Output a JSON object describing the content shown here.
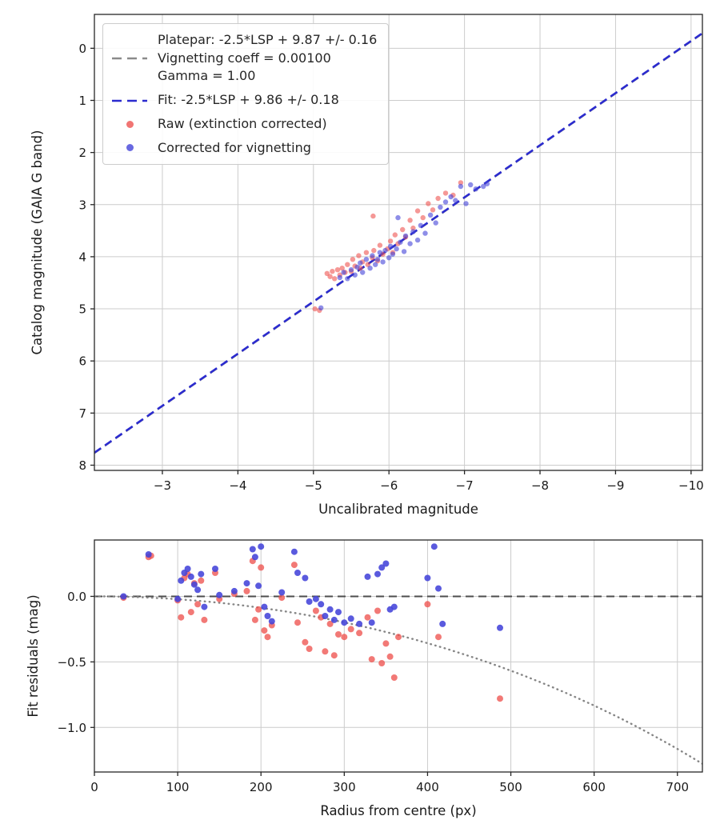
{
  "figure": {
    "background": "#ffffff",
    "colors": {
      "raw": "#ee5350",
      "corrected": "#4343d9",
      "fit_line": "#2b2bcf",
      "platepar_line": "#8a8a8a",
      "zero_line": "#4d4d4d",
      "vignetting_curve": "#858585",
      "grid": "#cccccc",
      "axis": "#262626",
      "text": "#1a1a1a"
    }
  },
  "legend": {
    "entries": [
      {
        "marker": "dash",
        "color_key": "platepar_line",
        "lines": [
          "Platepar: -2.5*LSP + 9.87 +/- 0.16",
          "Vignetting coeff = 0.00100",
          "Gamma = 1.00"
        ]
      },
      {
        "marker": "dash",
        "color_key": "fit_line",
        "lines": [
          "Fit: -2.5*LSP + 9.86 +/- 0.18"
        ]
      },
      {
        "marker": "dot",
        "color_key": "raw",
        "lines": [
          "Raw (extinction corrected)"
        ]
      },
      {
        "marker": "dot",
        "color_key": "corrected",
        "lines": [
          "Corrected for vignetting"
        ]
      }
    ]
  },
  "chart_data": [
    {
      "id": "magnitude-fit",
      "type": "scatter",
      "title": "",
      "xlabel": "Uncalibrated magnitude",
      "ylabel": "Catalog magnitude (GAIA G band)",
      "x_range": [
        -2.1,
        -10.15
      ],
      "y_range": [
        8.1,
        -0.65
      ],
      "x_inverted": true,
      "y_inverted": true,
      "grid": true,
      "legend_position": "upper left",
      "x_ticks": {
        "values": [
          -3,
          -4,
          -5,
          -6,
          -7,
          -8,
          -9,
          -10
        ],
        "labels": [
          "−3",
          "−4",
          "−5",
          "−6",
          "−7",
          "−8",
          "−9",
          "−10"
        ]
      },
      "y_ticks": {
        "values": [
          0,
          1,
          2,
          3,
          4,
          5,
          6,
          7,
          8
        ],
        "labels": [
          "0",
          "1",
          "2",
          "3",
          "4",
          "5",
          "6",
          "7",
          "8"
        ]
      },
      "lines": [
        {
          "name": "platepar-line",
          "label": "Platepar: -2.5*LSP + 9.87 +/- 0.16",
          "slope": 1,
          "intercept": 9.87,
          "dash": "dashed",
          "color_key": "platepar_line",
          "width": 2
        },
        {
          "name": "fit-line",
          "label": "Fit: -2.5*LSP + 9.86 +/- 0.18",
          "slope": 1,
          "intercept": 9.86,
          "dash": "dashed",
          "color_key": "fit_line",
          "width": 2.6
        }
      ],
      "series": [
        {
          "id": "raw",
          "name": "Raw (extinction corrected)",
          "color_key": "raw",
          "marker_radius": 3.2,
          "opacity": 0.6,
          "points": [
            [
              -5.02,
              5.0
            ],
            [
              -5.08,
              5.03
            ],
            [
              -5.18,
              4.32
            ],
            [
              -5.22,
              4.38
            ],
            [
              -5.25,
              4.28
            ],
            [
              -5.28,
              4.42
            ],
            [
              -5.32,
              4.25
            ],
            [
              -5.35,
              4.35
            ],
            [
              -5.38,
              4.22
            ],
            [
              -5.42,
              4.3
            ],
            [
              -5.45,
              4.15
            ],
            [
              -5.5,
              4.28
            ],
            [
              -5.52,
              4.05
            ],
            [
              -5.55,
              4.18
            ],
            [
              -5.6,
              3.98
            ],
            [
              -5.62,
              4.22
            ],
            [
              -5.65,
              4.1
            ],
            [
              -5.7,
              3.92
            ],
            [
              -5.72,
              4.15
            ],
            [
              -5.78,
              4.02
            ],
            [
              -5.79,
              3.22
            ],
            [
              -5.8,
              3.88
            ],
            [
              -5.85,
              4.08
            ],
            [
              -5.88,
              3.78
            ],
            [
              -5.92,
              3.95
            ],
            [
              -5.98,
              3.85
            ],
            [
              -6.02,
              3.7
            ],
            [
              -6.05,
              3.92
            ],
            [
              -6.08,
              3.58
            ],
            [
              -6.12,
              3.75
            ],
            [
              -6.18,
              3.48
            ],
            [
              -6.22,
              3.62
            ],
            [
              -6.28,
              3.3
            ],
            [
              -6.32,
              3.45
            ],
            [
              -6.38,
              3.12
            ],
            [
              -6.45,
              3.25
            ],
            [
              -6.52,
              2.98
            ],
            [
              -6.58,
              3.1
            ],
            [
              -6.65,
              2.88
            ],
            [
              -6.75,
              2.78
            ],
            [
              -6.85,
              2.82
            ],
            [
              -6.95,
              2.58
            ]
          ]
        },
        {
          "id": "corrected",
          "name": "Corrected for vignetting",
          "color_key": "corrected",
          "marker_radius": 3.2,
          "opacity": 0.6,
          "points": [
            [
              -5.1,
              4.98
            ],
            [
              -5.35,
              4.4
            ],
            [
              -5.4,
              4.3
            ],
            [
              -5.45,
              4.42
            ],
            [
              -5.5,
              4.25
            ],
            [
              -5.55,
              4.35
            ],
            [
              -5.58,
              4.2
            ],
            [
              -5.62,
              4.12
            ],
            [
              -5.65,
              4.3
            ],
            [
              -5.7,
              4.05
            ],
            [
              -5.75,
              4.22
            ],
            [
              -5.78,
              3.98
            ],
            [
              -5.82,
              4.15
            ],
            [
              -5.85,
              4.05
            ],
            [
              -5.88,
              3.92
            ],
            [
              -5.92,
              4.1
            ],
            [
              -5.95,
              3.88
            ],
            [
              -6.0,
              4.02
            ],
            [
              -6.02,
              3.8
            ],
            [
              -6.05,
              3.95
            ],
            [
              -6.1,
              3.85
            ],
            [
              -6.12,
              3.25
            ],
            [
              -6.15,
              3.72
            ],
            [
              -6.2,
              3.9
            ],
            [
              -6.22,
              3.6
            ],
            [
              -6.28,
              3.75
            ],
            [
              -6.32,
              3.52
            ],
            [
              -6.38,
              3.68
            ],
            [
              -6.42,
              3.4
            ],
            [
              -6.48,
              3.55
            ],
            [
              -6.55,
              3.2
            ],
            [
              -6.62,
              3.35
            ],
            [
              -6.68,
              3.05
            ],
            [
              -6.75,
              2.95
            ],
            [
              -6.82,
              2.85
            ],
            [
              -6.88,
              2.92
            ],
            [
              -6.95,
              2.65
            ],
            [
              -7.02,
              2.98
            ],
            [
              -7.08,
              2.62
            ],
            [
              -7.15,
              2.7
            ],
            [
              -7.25,
              2.65
            ],
            [
              -7.3,
              2.6
            ]
          ]
        }
      ]
    },
    {
      "id": "residuals",
      "type": "scatter",
      "title": "",
      "xlabel": "Radius from centre (px)",
      "ylabel": "Fit residuals (mag)",
      "x_range": [
        0,
        730
      ],
      "y_range": [
        -1.34,
        0.43
      ],
      "grid": true,
      "x_ticks": {
        "values": [
          0,
          100,
          200,
          300,
          400,
          500,
          600,
          700
        ],
        "labels": [
          "0",
          "100",
          "200",
          "300",
          "400",
          "500",
          "600",
          "700"
        ]
      },
      "y_ticks": {
        "values": [
          0,
          -0.5,
          -1
        ],
        "labels": [
          "0.0",
          "−0.5",
          "−1.0"
        ]
      },
      "h_lines": [
        {
          "name": "zero-residual-line",
          "y": 0,
          "dash": "dashed",
          "color_key": "zero_line",
          "width": 2
        }
      ],
      "model_curve": {
        "name": "vignetting-model-curve",
        "kind": "vignetting",
        "coeff": 0.001,
        "dash": "dotted",
        "color_key": "vignetting_curve",
        "width": 2.4
      },
      "series": [
        {
          "id": "raw",
          "name": "Raw (extinction corrected)",
          "color_key": "raw",
          "marker_radius": 4,
          "opacity": 0.78,
          "points": [
            [
              35,
              -0.01
            ],
            [
              65,
              0.3
            ],
            [
              68,
              0.31
            ],
            [
              100,
              -0.03
            ],
            [
              104,
              -0.16
            ],
            [
              108,
              0.14
            ],
            [
              112,
              0.17
            ],
            [
              116,
              -0.12
            ],
            [
              120,
              0.1
            ],
            [
              124,
              -0.06
            ],
            [
              128,
              0.12
            ],
            [
              132,
              -0.18
            ],
            [
              145,
              0.18
            ],
            [
              150,
              -0.02
            ],
            [
              168,
              0.02
            ],
            [
              183,
              0.04
            ],
            [
              190,
              0.27
            ],
            [
              193,
              -0.18
            ],
            [
              197,
              -0.1
            ],
            [
              200,
              0.22
            ],
            [
              204,
              -0.26
            ],
            [
              208,
              -0.31
            ],
            [
              213,
              -0.22
            ],
            [
              225,
              -0.01
            ],
            [
              240,
              0.24
            ],
            [
              244,
              -0.2
            ],
            [
              253,
              -0.35
            ],
            [
              258,
              -0.4
            ],
            [
              266,
              -0.11
            ],
            [
              272,
              -0.16
            ],
            [
              277,
              -0.42
            ],
            [
              283,
              -0.21
            ],
            [
              288,
              -0.45
            ],
            [
              293,
              -0.29
            ],
            [
              300,
              -0.31
            ],
            [
              308,
              -0.25
            ],
            [
              318,
              -0.28
            ],
            [
              328,
              -0.16
            ],
            [
              333,
              -0.48
            ],
            [
              340,
              -0.11
            ],
            [
              345,
              -0.51
            ],
            [
              350,
              -0.36
            ],
            [
              355,
              -0.46
            ],
            [
              360,
              -0.62
            ],
            [
              365,
              -0.31
            ],
            [
              400,
              -0.06
            ],
            [
              413,
              -0.31
            ],
            [
              487,
              -0.78
            ]
          ]
        },
        {
          "id": "corrected",
          "name": "Corrected for vignetting",
          "color_key": "corrected",
          "marker_radius": 4,
          "opacity": 0.88,
          "points": [
            [
              35,
              0.0
            ],
            [
              65,
              0.32
            ],
            [
              100,
              -0.02
            ],
            [
              104,
              0.12
            ],
            [
              108,
              0.18
            ],
            [
              112,
              0.21
            ],
            [
              116,
              0.15
            ],
            [
              120,
              0.09
            ],
            [
              124,
              0.05
            ],
            [
              128,
              0.17
            ],
            [
              132,
              -0.08
            ],
            [
              145,
              0.21
            ],
            [
              150,
              0.01
            ],
            [
              168,
              0.04
            ],
            [
              183,
              0.1
            ],
            [
              190,
              0.36
            ],
            [
              193,
              0.3
            ],
            [
              197,
              0.08
            ],
            [
              200,
              0.38
            ],
            [
              204,
              -0.08
            ],
            [
              208,
              -0.15
            ],
            [
              213,
              -0.19
            ],
            [
              225,
              0.03
            ],
            [
              240,
              0.34
            ],
            [
              244,
              0.18
            ],
            [
              253,
              0.14
            ],
            [
              258,
              -0.04
            ],
            [
              266,
              -0.02
            ],
            [
              272,
              -0.06
            ],
            [
              277,
              -0.15
            ],
            [
              283,
              -0.1
            ],
            [
              288,
              -0.18
            ],
            [
              293,
              -0.12
            ],
            [
              300,
              -0.2
            ],
            [
              308,
              -0.17
            ],
            [
              318,
              -0.21
            ],
            [
              328,
              0.15
            ],
            [
              333,
              -0.2
            ],
            [
              340,
              0.17
            ],
            [
              345,
              0.22
            ],
            [
              350,
              0.25
            ],
            [
              355,
              -0.1
            ],
            [
              360,
              -0.08
            ],
            [
              400,
              0.14
            ],
            [
              408,
              0.38
            ],
            [
              413,
              0.06
            ],
            [
              418,
              -0.21
            ],
            [
              487,
              -0.24
            ]
          ]
        }
      ]
    }
  ]
}
